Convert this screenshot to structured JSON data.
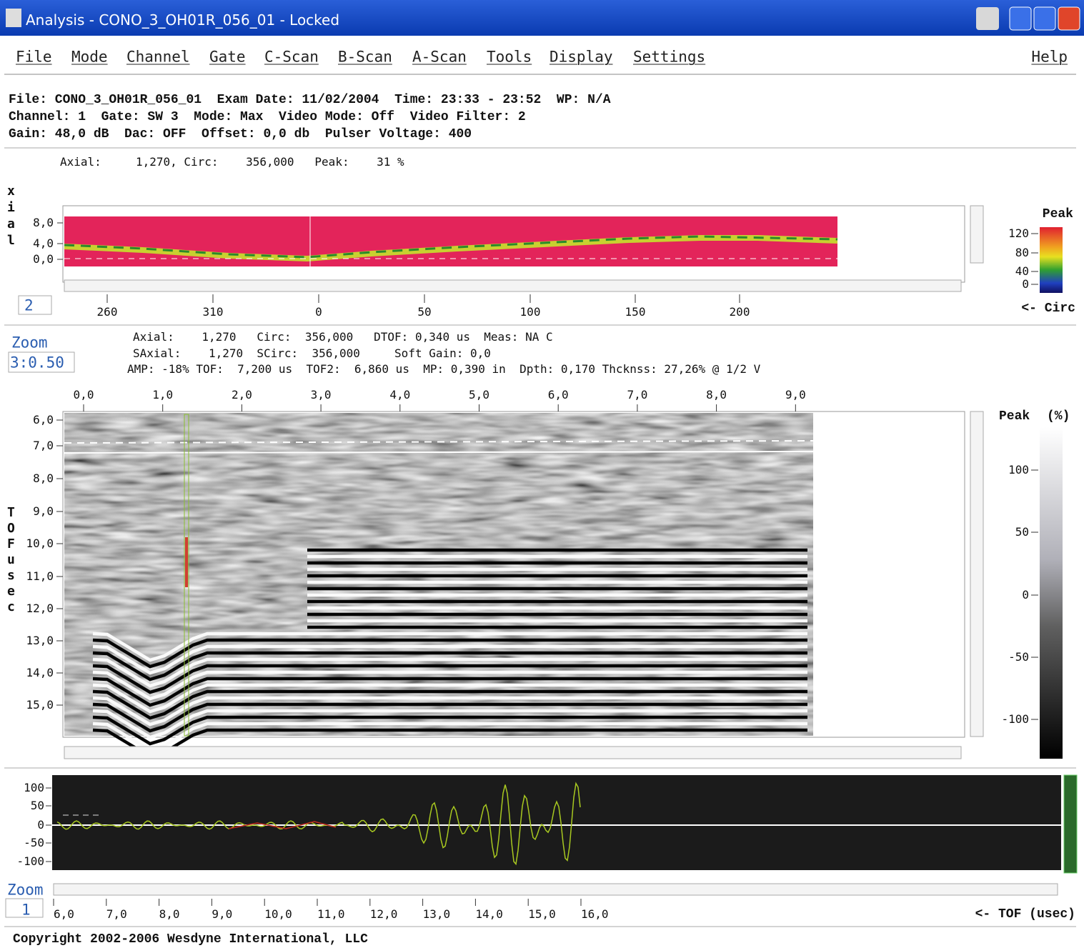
{
  "window": {
    "title": "Analysis - CONO_3_OH01R_056_01 - Locked"
  },
  "menu": {
    "items": [
      "File",
      "Mode",
      "Channel",
      "Gate",
      "C-Scan",
      "B-Scan",
      "A-Scan",
      "Tools",
      "Display",
      "Settings"
    ],
    "help": "Help"
  },
  "file_info": {
    "lines": [
      "File: CONO_3_OH01R_056_01  Exam Date: 11/02/2004  Time: 23:33 - 23:52  WP: N/A",
      "Channel: 1  Gate: SW 3  Mode: Max  Video Mode: Off  Video Filter: 2",
      "Gain: 48,0 dB  Dac: OFF  Offset: 0,0 db  Pulser Voltage: 400"
    ]
  },
  "cscan": {
    "readout": "Axial:     1,270, Circ:    356,000   Peak:    31 %",
    "axis_label": "xial",
    "yticks": [
      "8,0",
      "4,0",
      "0,0"
    ],
    "xticks": [
      "260",
      "310",
      "0",
      "50",
      "100",
      "150",
      "200"
    ],
    "zoom": "2",
    "colorbar": {
      "title": "Peak",
      "ticks": [
        "120",
        "80",
        "40",
        "0"
      ]
    },
    "direction": "<- Circ"
  },
  "bscan": {
    "zoom_label": "Zoom",
    "zoom": "3:0.50",
    "readout": [
      "Axial:    1,270   Circ:  356,000   DTOF: 0,340 us  Meas: NA C",
      "SAxial:    1,270  SCirc:  356,000     Soft Gain: 0,0",
      "AMP: -18% TOF:  7,200 us  TOF2:  6,860 us  MP: 0,390 in  Dpth: 0,170 Thcknss: 27,26% @ 1/2 V"
    ],
    "xticks": [
      "0,0",
      "1,0",
      "2,0",
      "3,0",
      "4,0",
      "5,0",
      "6,0",
      "7,0",
      "8,0",
      "9,0"
    ],
    "yticks": [
      "6,0",
      "7,0",
      "8,0",
      "9,0",
      "10,0",
      "11,0",
      "12,0",
      "13,0",
      "14,0",
      "15,0"
    ],
    "axis_label": "TOF usec",
    "colorbar": {
      "title": "Peak",
      "unit": "(%)",
      "ticks": [
        "100",
        "50",
        "0",
        "-50",
        "-100"
      ]
    }
  },
  "ascan": {
    "yticks": [
      "100",
      "50",
      "0",
      "-50",
      "-100"
    ],
    "xticks": [
      "6,0",
      "7,0",
      "8,0",
      "9,0",
      "10,0",
      "11,0",
      "12,0",
      "13,0",
      "14,0",
      "15,0",
      "16,0"
    ],
    "zoom_label": "Zoom",
    "zoom": "1",
    "direction": "<- TOF (usec)"
  },
  "footer": "Copyright 2002-2006 Wesdyne International, LLC"
}
